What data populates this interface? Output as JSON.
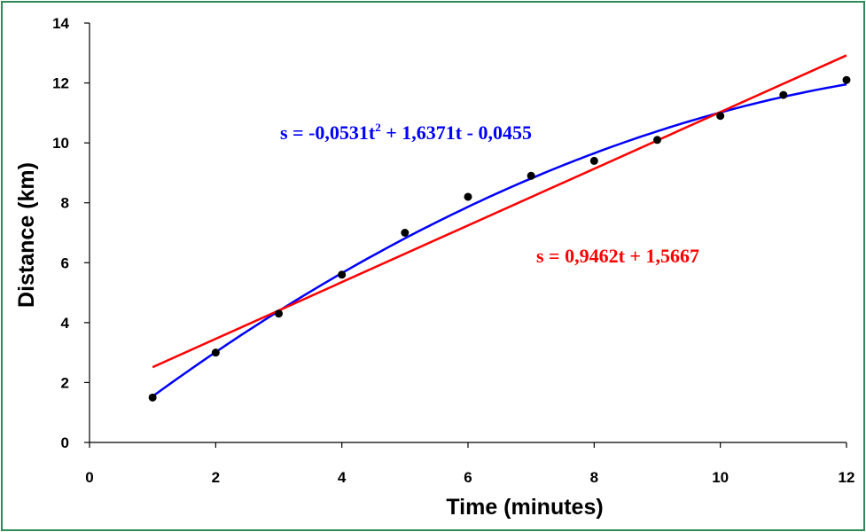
{
  "chart_data": {
    "type": "scatter",
    "xlabel": "Time (minutes)",
    "ylabel": "Distance (km)",
    "xlim": [
      0,
      12
    ],
    "ylim": [
      0,
      14
    ],
    "x_ticks": [
      "0",
      "2",
      "4",
      "6",
      "8",
      "10",
      "12"
    ],
    "y_ticks": [
      "0",
      "2",
      "4",
      "6",
      "8",
      "10",
      "12",
      "14"
    ],
    "grid": false,
    "legend": "none",
    "points": {
      "x": [
        1,
        2,
        3,
        4,
        5,
        6,
        7,
        8,
        9,
        10,
        11,
        12
      ],
      "y": [
        1.5,
        3.0,
        4.3,
        5.6,
        7.0,
        8.2,
        8.9,
        9.4,
        10.1,
        10.9,
        11.6,
        12.1
      ],
      "color": "#000000"
    },
    "fits": [
      {
        "kind": "polynomial",
        "color": "#0000ff",
        "equation_prefix": "s = -0,0531t",
        "equation_sup": "2",
        "equation_suffix": " + 1,6371t - 0,0455",
        "x_range": [
          1,
          12
        ]
      },
      {
        "kind": "linear",
        "color": "#ff0000",
        "equation": "s = 0,9462t + 1,5667",
        "x_range": [
          1,
          12
        ]
      }
    ]
  }
}
